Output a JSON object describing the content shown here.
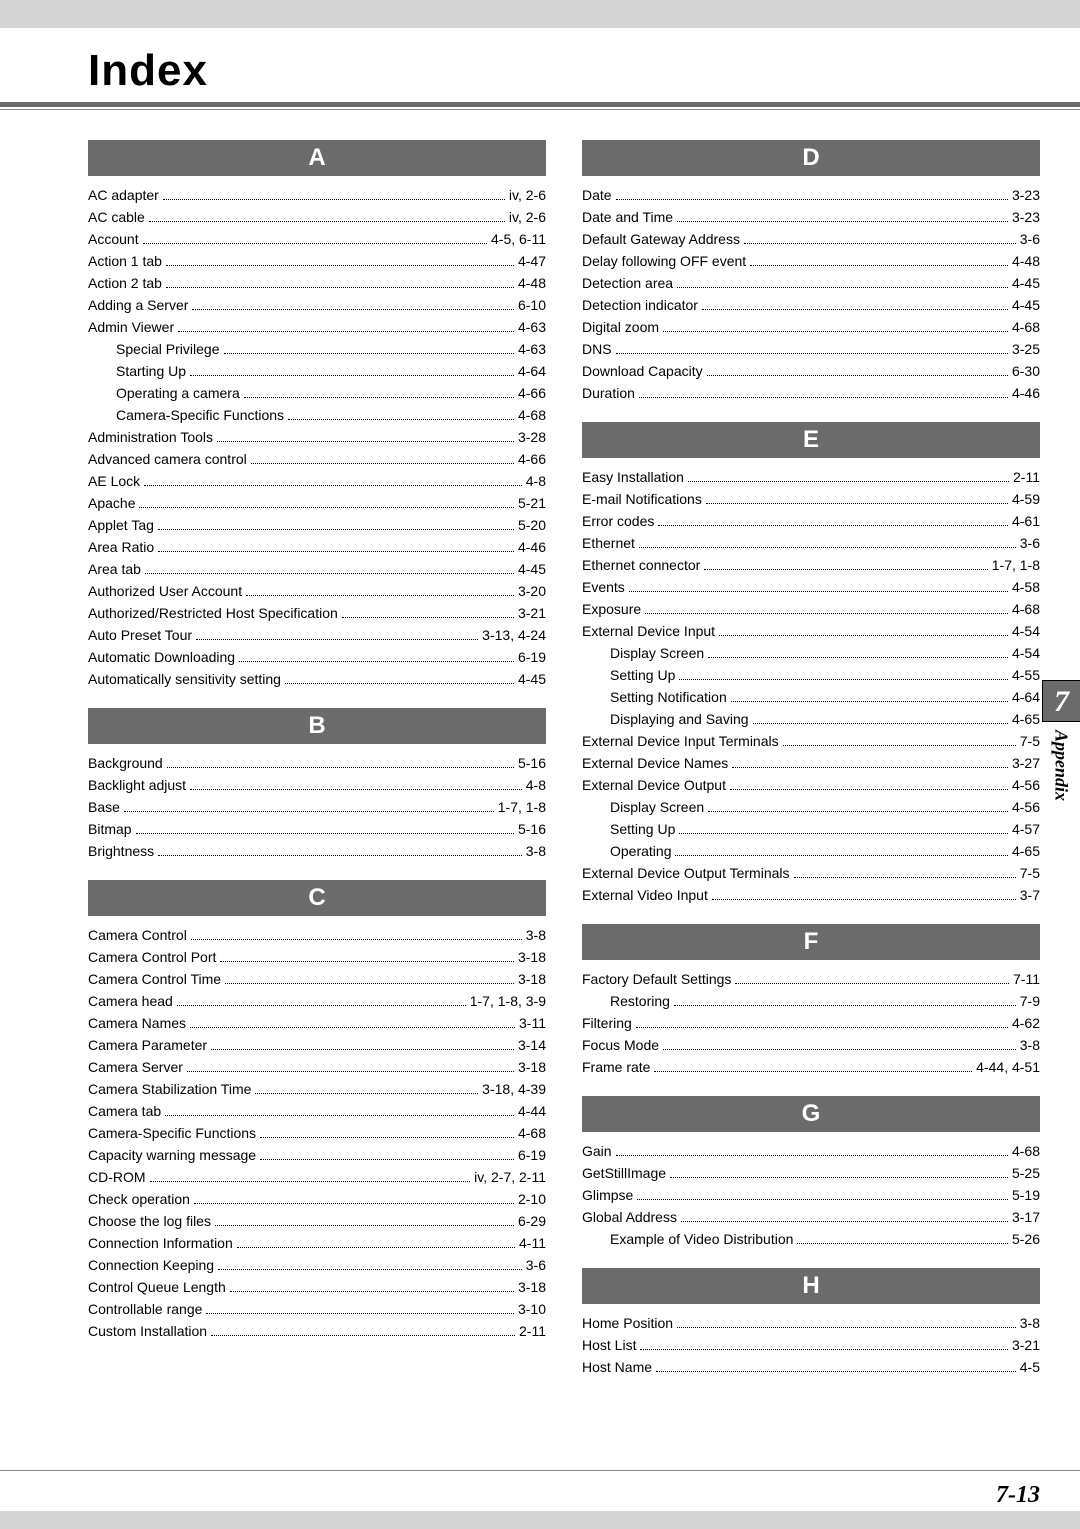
{
  "page": {
    "title": "Index",
    "side_tab_number": "7",
    "side_tab_label": "Appendix",
    "page_number": "7-13"
  },
  "left": [
    {
      "letter": "A",
      "entries": [
        {
          "label": "AC adapter",
          "page": "iv,  2-6",
          "sub": false
        },
        {
          "label": "AC cable",
          "page": "iv,  2-6",
          "sub": false
        },
        {
          "label": "Account",
          "page": "4-5, 6-11",
          "sub": false
        },
        {
          "label": "Action 1 tab",
          "page": "4-47",
          "sub": false
        },
        {
          "label": "Action 2 tab",
          "page": "4-48",
          "sub": false
        },
        {
          "label": "Adding a Server",
          "page": "6-10",
          "sub": false
        },
        {
          "label": "Admin Viewer",
          "page": "4-63",
          "sub": false
        },
        {
          "label": "Special Privilege",
          "page": "4-63",
          "sub": true
        },
        {
          "label": "Starting Up",
          "page": "4-64",
          "sub": true
        },
        {
          "label": "Operating a camera",
          "page": "4-66",
          "sub": true
        },
        {
          "label": "Camera-Specific Functions",
          "page": "4-68",
          "sub": true
        },
        {
          "label": "Administration Tools",
          "page": "3-28",
          "sub": false
        },
        {
          "label": "Advanced camera control",
          "page": "4-66",
          "sub": false
        },
        {
          "label": "AE Lock",
          "page": "4-8",
          "sub": false
        },
        {
          "label": "Apache",
          "page": "5-21",
          "sub": false
        },
        {
          "label": "Applet Tag",
          "page": "5-20",
          "sub": false
        },
        {
          "label": "Area Ratio",
          "page": "4-46",
          "sub": false
        },
        {
          "label": "Area tab",
          "page": "4-45",
          "sub": false
        },
        {
          "label": "Authorized User Account",
          "page": "3-20",
          "sub": false
        },
        {
          "label": "Authorized/Restricted Host Specification",
          "page": "3-21",
          "sub": false
        },
        {
          "label": "Auto Preset Tour",
          "page": "3-13, 4-24",
          "sub": false
        },
        {
          "label": "Automatic Downloading",
          "page": "6-19",
          "sub": false
        },
        {
          "label": "Automatically sensitivity setting",
          "page": "4-45",
          "sub": false
        }
      ]
    },
    {
      "letter": "B",
      "entries": [
        {
          "label": "Background",
          "page": "5-16",
          "sub": false
        },
        {
          "label": "Backlight adjust",
          "page": "4-8",
          "sub": false
        },
        {
          "label": "Base",
          "page": "1-7, 1-8",
          "sub": false
        },
        {
          "label": "Bitmap",
          "page": "5-16",
          "sub": false
        },
        {
          "label": "Brightness",
          "page": "3-8",
          "sub": false
        }
      ]
    },
    {
      "letter": "C",
      "entries": [
        {
          "label": "Camera Control",
          "page": "3-8",
          "sub": false
        },
        {
          "label": "Camera Control Port",
          "page": "3-18",
          "sub": false
        },
        {
          "label": "Camera Control Time",
          "page": "3-18",
          "sub": false
        },
        {
          "label": "Camera head",
          "page": "1-7, 1-8, 3-9",
          "sub": false
        },
        {
          "label": "Camera Names",
          "page": "3-11",
          "sub": false
        },
        {
          "label": "Camera Parameter",
          "page": "3-14",
          "sub": false
        },
        {
          "label": "Camera Server",
          "page": "3-18",
          "sub": false
        },
        {
          "label": "Camera Stabilization Time",
          "page": "3-18, 4-39",
          "sub": false
        },
        {
          "label": "Camera tab",
          "page": "4-44",
          "sub": false
        },
        {
          "label": "Camera-Specific Functions",
          "page": "4-68",
          "sub": false
        },
        {
          "label": "Capacity warning message",
          "page": "6-19",
          "sub": false
        },
        {
          "label": "CD-ROM",
          "page": "iv, 2-7, 2-11",
          "sub": false
        },
        {
          "label": "Check operation",
          "page": "2-10",
          "sub": false
        },
        {
          "label": "Choose the log files",
          "page": "6-29",
          "sub": false
        },
        {
          "label": "Connection Information",
          "page": "4-11",
          "sub": false
        },
        {
          "label": "Connection Keeping",
          "page": "3-6",
          "sub": false
        },
        {
          "label": "Control Queue Length",
          "page": "3-18",
          "sub": false
        },
        {
          "label": "Controllable range",
          "page": "3-10",
          "sub": false
        },
        {
          "label": "Custom Installation",
          "page": "2-11",
          "sub": false
        }
      ]
    }
  ],
  "right": [
    {
      "letter": "D",
      "entries": [
        {
          "label": "Date",
          "page": "3-23",
          "sub": false
        },
        {
          "label": "Date and Time",
          "page": "3-23",
          "sub": false
        },
        {
          "label": "Default Gateway Address",
          "page": "3-6",
          "sub": false
        },
        {
          "label": "Delay following OFF event",
          "page": "4-48",
          "sub": false
        },
        {
          "label": "Detection area",
          "page": "4-45",
          "sub": false
        },
        {
          "label": "Detection indicator",
          "page": "4-45",
          "sub": false
        },
        {
          "label": "Digital zoom",
          "page": "4-68",
          "sub": false
        },
        {
          "label": "DNS",
          "page": "3-25",
          "sub": false
        },
        {
          "label": "Download Capacity",
          "page": "6-30",
          "sub": false
        },
        {
          "label": "Duration",
          "page": "4-46",
          "sub": false
        }
      ]
    },
    {
      "letter": "E",
      "entries": [
        {
          "label": "Easy Installation",
          "page": "2-11",
          "sub": false
        },
        {
          "label": "E-mail Notifications",
          "page": "4-59",
          "sub": false
        },
        {
          "label": "Error codes",
          "page": "4-61",
          "sub": false
        },
        {
          "label": "Ethernet",
          "page": "3-6",
          "sub": false
        },
        {
          "label": "Ethernet connector",
          "page": "1-7, 1-8",
          "sub": false
        },
        {
          "label": "Events",
          "page": "4-58",
          "sub": false
        },
        {
          "label": "Exposure",
          "page": "4-68",
          "sub": false
        },
        {
          "label": "External Device Input",
          "page": "4-54",
          "sub": false
        },
        {
          "label": "Display Screen",
          "page": "4-54",
          "sub": true
        },
        {
          "label": "Setting Up",
          "page": "4-55",
          "sub": true
        },
        {
          "label": "Setting Notification",
          "page": "4-64",
          "sub": true
        },
        {
          "label": "Displaying and Saving",
          "page": "4-65",
          "sub": true
        },
        {
          "label": "External Device Input Terminals",
          "page": "7-5",
          "sub": false
        },
        {
          "label": "External Device Names",
          "page": "3-27",
          "sub": false
        },
        {
          "label": "External Device Output",
          "page": "4-56",
          "sub": false
        },
        {
          "label": "Display Screen",
          "page": "4-56",
          "sub": true
        },
        {
          "label": "Setting Up",
          "page": "4-57",
          "sub": true
        },
        {
          "label": "Operating",
          "page": "4-65",
          "sub": true
        },
        {
          "label": "External Device Output Terminals",
          "page": "7-5",
          "sub": false
        },
        {
          "label": "External Video Input",
          "page": "3-7",
          "sub": false
        }
      ]
    },
    {
      "letter": "F",
      "entries": [
        {
          "label": "Factory Default Settings",
          "page": "7-11",
          "sub": false
        },
        {
          "label": "Restoring",
          "page": "7-9",
          "sub": true
        },
        {
          "label": "Filtering",
          "page": "4-62",
          "sub": false
        },
        {
          "label": "Focus Mode",
          "page": "3-8",
          "sub": false
        },
        {
          "label": "Frame rate",
          "page": "4-44, 4-51",
          "sub": false
        }
      ]
    },
    {
      "letter": "G",
      "entries": [
        {
          "label": "Gain",
          "page": "4-68",
          "sub": false
        },
        {
          "label": "GetStillImage",
          "page": "5-25",
          "sub": false
        },
        {
          "label": "Glimpse",
          "page": "5-19",
          "sub": false
        },
        {
          "label": "Global Address",
          "page": "3-17",
          "sub": false
        },
        {
          "label": "Example of Video Distribution",
          "page": "5-26",
          "sub": true
        }
      ]
    },
    {
      "letter": "H",
      "entries": [
        {
          "label": "Home Position",
          "page": "3-8",
          "sub": false
        },
        {
          "label": "Host List",
          "page": "3-21",
          "sub": false
        },
        {
          "label": "Host Name",
          "page": "4-5",
          "sub": false
        }
      ]
    }
  ]
}
